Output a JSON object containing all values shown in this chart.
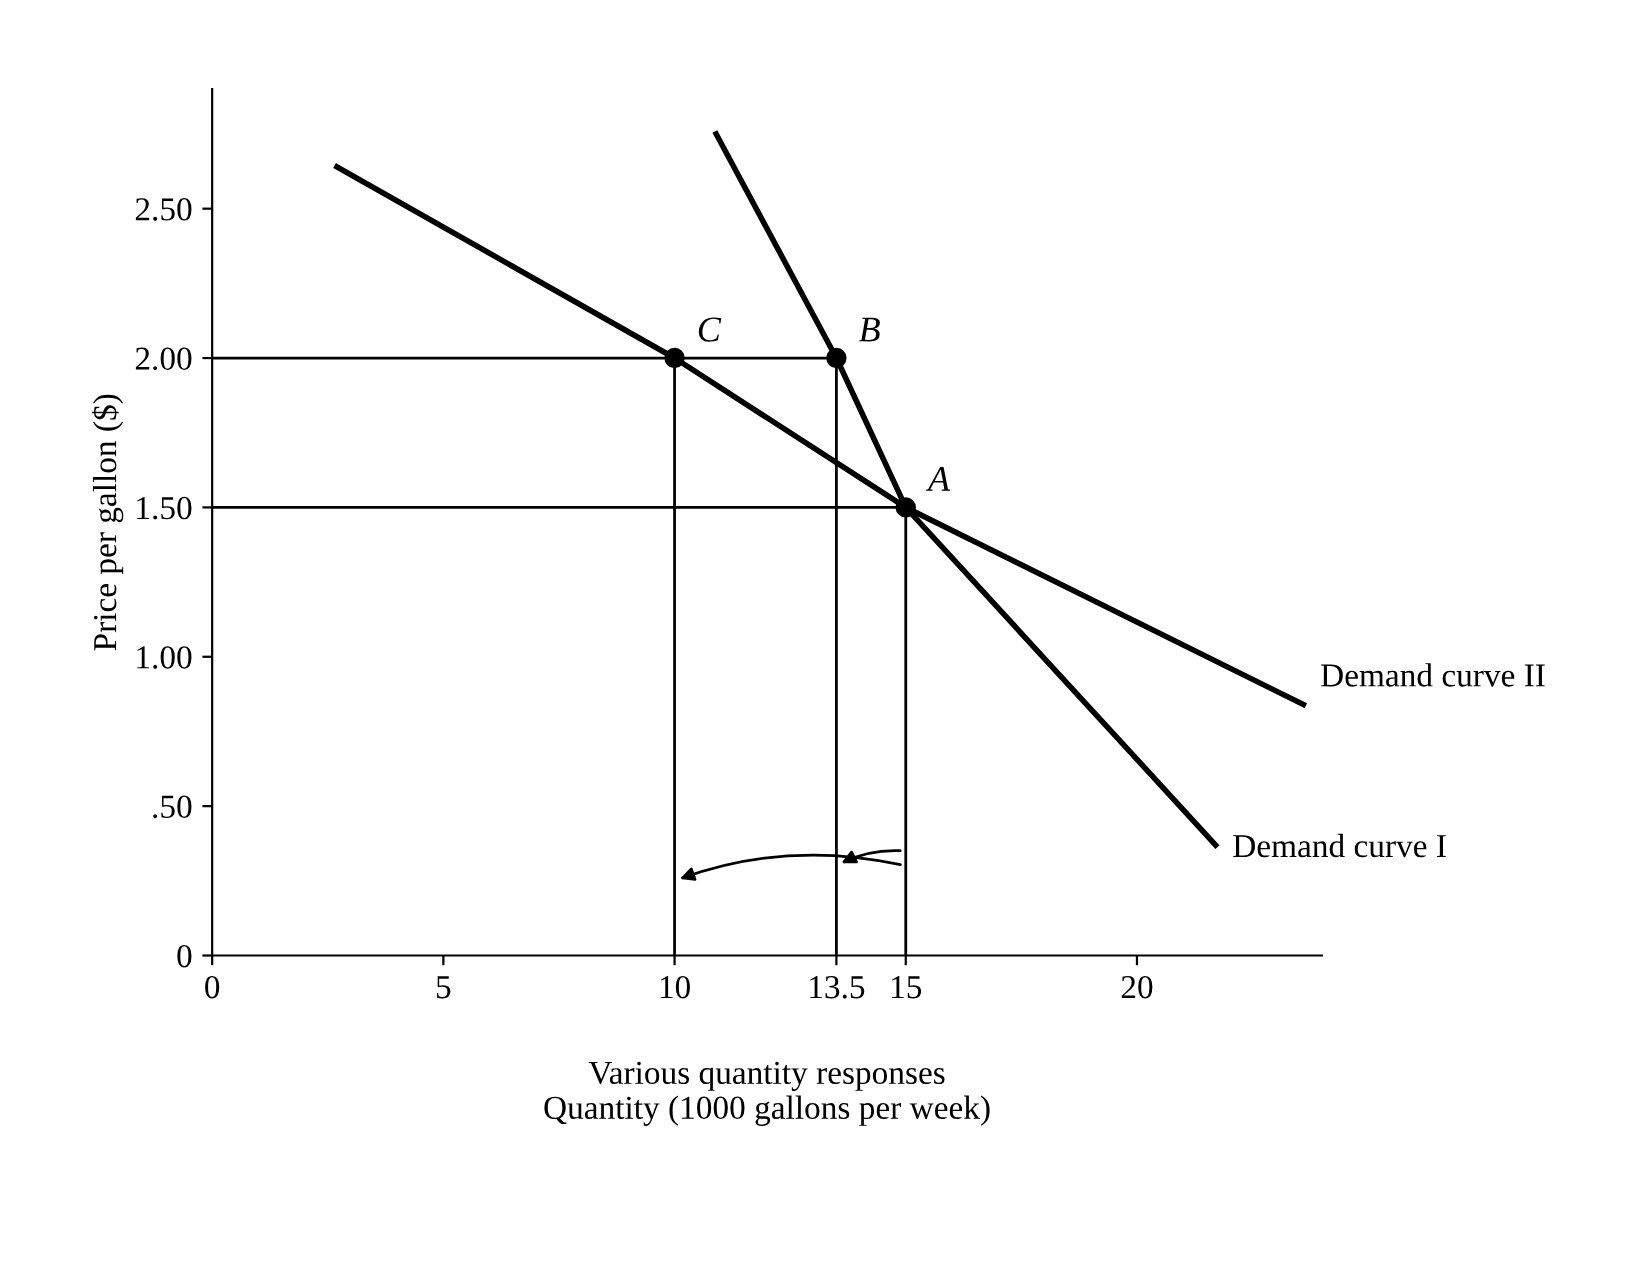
{
  "chart_data": {
    "type": "line",
    "xlabel": "Various quantity responses\nQuantity (1000 gallons per week)",
    "ylabel": "Price per gallon ($)",
    "xlim": [
      0,
      24
    ],
    "ylim": [
      0,
      2.9
    ],
    "xticks": [
      0,
      5,
      10,
      13.5,
      15,
      20
    ],
    "yticks": [
      {
        "value": 0,
        "label": "0"
      },
      {
        "value": 0.5,
        "label": ".50"
      },
      {
        "value": 1.0,
        "label": "1.00"
      },
      {
        "value": 1.5,
        "label": "1.50"
      },
      {
        "value": 2.0,
        "label": "2.00"
      },
      {
        "value": 2.5,
        "label": "2.50"
      }
    ],
    "grid": false,
    "legend": false,
    "series": [
      {
        "name": "Demand curve I",
        "color": "#000000",
        "marker": "none",
        "x": [
          10.9,
          13.5,
          15,
          21.7
        ],
        "values": [
          2.75,
          2.0,
          1.5,
          0.37
        ]
      },
      {
        "name": "Demand curve II",
        "color": "#000000",
        "marker": "none",
        "x": [
          2.7,
          10,
          15,
          23.6
        ],
        "values": [
          2.64,
          2.0,
          1.5,
          0.84
        ]
      },
      {
        "color": "#000000",
        "type": "line",
        "marker": "none",
        "x": [
          0,
          13.5
        ],
        "values": [
          2.0,
          2.0
        ]
      },
      {
        "color": "#000000",
        "type": "line",
        "marker": "none",
        "x": [
          0,
          15
        ],
        "values": [
          1.5,
          1.5
        ]
      },
      {
        "color": "#000000",
        "type": "line",
        "marker": "none",
        "x": [
          10,
          10
        ],
        "values": [
          0,
          2.0
        ]
      },
      {
        "color": "#000000",
        "type": "line",
        "marker": "none",
        "x": [
          13.5,
          13.5
        ],
        "values": [
          0,
          2.0
        ]
      },
      {
        "color": "#000000",
        "type": "line",
        "marker": "none",
        "x": [
          15,
          15
        ],
        "values": [
          0,
          1.5
        ]
      },
      {
        "color": "#000000",
        "type": "scatter",
        "marker": "circle",
        "x": [
          10,
          13.5,
          15
        ],
        "values": [
          2.0,
          2.0,
          1.5
        ]
      }
    ],
    "annotations": [
      {
        "text": "C",
        "x": 10,
        "y": 2.0
      },
      {
        "text": "B",
        "x": 13.5,
        "y": 2.0
      },
      {
        "text": "A",
        "x": 15,
        "y": 1.5
      }
    ]
  }
}
